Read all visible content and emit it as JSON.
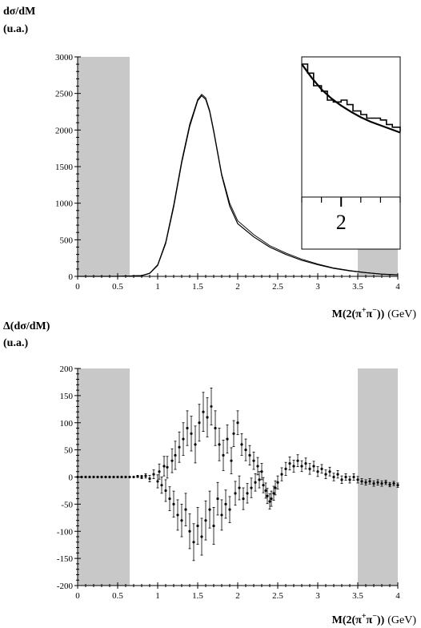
{
  "colors": {
    "shade": "#c8c8c8",
    "line": "#000000"
  },
  "chart_data": [
    {
      "type": "line",
      "ylabel_line1": "dσ/dM",
      "ylabel_line2": "(u.a.)",
      "xlabel_main": "M(2(π",
      "xlabel_sup1": "+",
      "xlabel_mid": "π",
      "xlabel_sup2": "−",
      "xlabel_close": "))",
      "xlabel_unit": "(GeV)",
      "xlim": [
        0,
        4
      ],
      "ylim": [
        0,
        3000
      ],
      "xticks": [
        "0",
        "0.5",
        "1",
        "1.5",
        "2",
        "2.5",
        "3",
        "3.5",
        "4"
      ],
      "yticks": [
        "0",
        "500",
        "1000",
        "1500",
        "2000",
        "2500",
        "3000"
      ],
      "shaded_x_ranges": [
        [
          0,
          0.65
        ],
        [
          3.5,
          4.0
        ]
      ],
      "series": [
        {
          "x": [
            0,
            0.5,
            0.8,
            0.9,
            1.0,
            1.1,
            1.2,
            1.3,
            1.4,
            1.5,
            1.55,
            1.6,
            1.65,
            1.7,
            1.8,
            1.9,
            2.0,
            2.2,
            2.4,
            2.6,
            2.8,
            3.0,
            3.2,
            3.4,
            3.6,
            3.8,
            4.0
          ],
          "y": [
            0,
            0,
            10,
            40,
            150,
            450,
            950,
            1550,
            2050,
            2400,
            2470,
            2420,
            2250,
            1980,
            1380,
            960,
            720,
            540,
            400,
            300,
            220,
            160,
            110,
            75,
            50,
            30,
            20
          ]
        },
        {
          "x": [
            0,
            0.5,
            0.8,
            0.9,
            1.0,
            1.1,
            1.2,
            1.3,
            1.4,
            1.5,
            1.55,
            1.6,
            1.65,
            1.7,
            1.8,
            1.9,
            2.0,
            2.2,
            2.4,
            2.6,
            2.8,
            3.0,
            3.2,
            3.4,
            3.6,
            3.8,
            4.0
          ],
          "y": [
            0,
            0,
            12,
            45,
            160,
            470,
            980,
            1580,
            2080,
            2420,
            2490,
            2440,
            2270,
            2000,
            1400,
            1000,
            760,
            570,
            420,
            320,
            235,
            170,
            115,
            80,
            52,
            32,
            22
          ]
        }
      ],
      "inset": {
        "xticks": [
          "2"
        ],
        "series": [
          {
            "x": [
              1.8,
              1.85,
              1.9,
              1.95,
              2.0,
              2.05,
              2.1,
              2.15,
              2.2,
              2.25,
              2.3
            ],
            "y": [
              1000,
              925,
              860,
              810,
              770,
              735,
              705,
              680,
              660,
              640,
              620
            ]
          },
          {
            "x": [
              1.8,
              1.83,
              1.86,
              1.9,
              1.93,
              1.96,
              2.0,
              2.03,
              2.06,
              2.1,
              2.13,
              2.16,
              2.2,
              2.23,
              2.26,
              2.3
            ],
            "y": [
              1000,
              950,
              880,
              850,
              800,
              790,
              800,
              775,
              740,
              720,
              700,
              700,
              690,
              665,
              650,
              625
            ]
          }
        ]
      }
    },
    {
      "type": "scatter",
      "ylabel_line1": "Δ(dσ/dM)",
      "ylabel_line2": "(u.a.)",
      "xlabel_main": "M(2(π",
      "xlabel_sup1": "+",
      "xlabel_mid": "π",
      "xlabel_sup2": "−",
      "xlabel_close": "))",
      "xlabel_unit": "(GeV)",
      "xlim": [
        0,
        4
      ],
      "ylim": [
        -200,
        200
      ],
      "xticks": [
        "0",
        "0.5",
        "1",
        "1.5",
        "2",
        "2.5",
        "3",
        "3.5",
        "4"
      ],
      "yticks": [
        "-200",
        "-150",
        "-100",
        "-50",
        "0",
        "50",
        "100",
        "150",
        "200"
      ],
      "shaded_x_ranges": [
        [
          0,
          0.65
        ],
        [
          3.5,
          4.0
        ]
      ],
      "points": [
        [
          0.0,
          0,
          1
        ],
        [
          0.05,
          0,
          1
        ],
        [
          0.1,
          0,
          1
        ],
        [
          0.15,
          0,
          1
        ],
        [
          0.2,
          0,
          1
        ],
        [
          0.25,
          0,
          1
        ],
        [
          0.3,
          0,
          1
        ],
        [
          0.35,
          0,
          1
        ],
        [
          0.4,
          0,
          1
        ],
        [
          0.45,
          0,
          1
        ],
        [
          0.5,
          0,
          1
        ],
        [
          0.55,
          0,
          1
        ],
        [
          0.6,
          0,
          1
        ],
        [
          0.65,
          0,
          1
        ],
        [
          0.7,
          0,
          1
        ],
        [
          0.75,
          1,
          2
        ],
        [
          0.8,
          0,
          3
        ],
        [
          0.85,
          2,
          4
        ],
        [
          0.9,
          -3,
          6
        ],
        [
          0.95,
          5,
          8
        ],
        [
          1.0,
          -8,
          12
        ],
        [
          1.02,
          10,
          14
        ],
        [
          1.05,
          -15,
          15
        ],
        [
          1.08,
          20,
          18
        ],
        [
          1.1,
          -25,
          20
        ],
        [
          1.12,
          18,
          20
        ],
        [
          1.15,
          -40,
          22
        ],
        [
          1.18,
          30,
          22
        ],
        [
          1.2,
          -50,
          24
        ],
        [
          1.22,
          40,
          26
        ],
        [
          1.25,
          -70,
          28
        ],
        [
          1.27,
          55,
          28
        ],
        [
          1.3,
          -80,
          30
        ],
        [
          1.32,
          70,
          30
        ],
        [
          1.35,
          -60,
          30
        ],
        [
          1.37,
          90,
          32
        ],
        [
          1.4,
          -100,
          32
        ],
        [
          1.42,
          80,
          32
        ],
        [
          1.45,
          -120,
          34
        ],
        [
          1.47,
          60,
          34
        ],
        [
          1.5,
          -90,
          34
        ],
        [
          1.52,
          100,
          34
        ],
        [
          1.55,
          -110,
          34
        ],
        [
          1.57,
          120,
          36
        ],
        [
          1.6,
          -80,
          36
        ],
        [
          1.62,
          110,
          36
        ],
        [
          1.65,
          -60,
          34
        ],
        [
          1.67,
          130,
          34
        ],
        [
          1.7,
          -90,
          34
        ],
        [
          1.72,
          90,
          32
        ],
        [
          1.75,
          -40,
          30
        ],
        [
          1.77,
          60,
          30
        ],
        [
          1.8,
          -70,
          28
        ],
        [
          1.82,
          40,
          28
        ],
        [
          1.85,
          -50,
          26
        ],
        [
          1.87,
          70,
          26
        ],
        [
          1.9,
          -60,
          24
        ],
        [
          1.92,
          30,
          24
        ],
        [
          1.95,
          80,
          24
        ],
        [
          1.97,
          -30,
          22
        ],
        [
          2.0,
          100,
          22
        ],
        [
          2.02,
          -20,
          22
        ],
        [
          2.05,
          60,
          20
        ],
        [
          2.07,
          -40,
          20
        ],
        [
          2.1,
          50,
          20
        ],
        [
          2.12,
          -30,
          18
        ],
        [
          2.15,
          40,
          18
        ],
        [
          2.17,
          -20,
          18
        ],
        [
          2.2,
          30,
          16
        ],
        [
          2.22,
          -10,
          16
        ],
        [
          2.25,
          20,
          16
        ],
        [
          2.27,
          -5,
          15
        ],
        [
          2.3,
          10,
          15
        ],
        [
          2.32,
          -15,
          14
        ],
        [
          2.35,
          -25,
          14
        ],
        [
          2.37,
          -35,
          14
        ],
        [
          2.4,
          -45,
          14
        ],
        [
          2.42,
          -40,
          14
        ],
        [
          2.45,
          -30,
          13
        ],
        [
          2.47,
          -20,
          13
        ],
        [
          2.5,
          -10,
          12
        ],
        [
          2.55,
          5,
          12
        ],
        [
          2.6,
          15,
          12
        ],
        [
          2.65,
          25,
          12
        ],
        [
          2.7,
          20,
          11
        ],
        [
          2.75,
          30,
          11
        ],
        [
          2.8,
          20,
          10
        ],
        [
          2.85,
          25,
          10
        ],
        [
          2.9,
          15,
          10
        ],
        [
          2.95,
          20,
          9
        ],
        [
          3.0,
          10,
          9
        ],
        [
          3.05,
          15,
          8
        ],
        [
          3.1,
          5,
          8
        ],
        [
          3.15,
          10,
          8
        ],
        [
          3.2,
          0,
          7
        ],
        [
          3.25,
          5,
          7
        ],
        [
          3.3,
          -5,
          7
        ],
        [
          3.35,
          0,
          6
        ],
        [
          3.4,
          -5,
          6
        ],
        [
          3.45,
          0,
          6
        ],
        [
          3.5,
          -5,
          6
        ],
        [
          3.55,
          -8,
          5
        ],
        [
          3.6,
          -10,
          5
        ],
        [
          3.65,
          -8,
          5
        ],
        [
          3.7,
          -12,
          5
        ],
        [
          3.75,
          -10,
          5
        ],
        [
          3.8,
          -12,
          5
        ],
        [
          3.85,
          -10,
          4
        ],
        [
          3.9,
          -14,
          4
        ],
        [
          3.95,
          -12,
          4
        ],
        [
          4.0,
          -15,
          4
        ]
      ]
    }
  ]
}
